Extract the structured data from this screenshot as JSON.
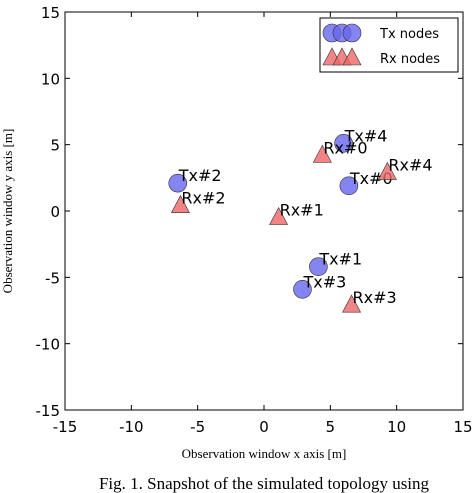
{
  "chart_data": {
    "type": "scatter",
    "xlabel": "Observation window x axis [m]",
    "ylabel": "Observation window y axis [m]",
    "caption": "Fig. 1. Snapshot of the simulated topology using",
    "xlim": [
      -15,
      15
    ],
    "ylim": [
      -15,
      15
    ],
    "xticks": [
      -15,
      -10,
      -5,
      0,
      5,
      10,
      15
    ],
    "yticks": [
      -15,
      -10,
      -5,
      0,
      5,
      10,
      15
    ],
    "legend": "upper right",
    "series": [
      {
        "name": "Tx nodes",
        "color": "#6666ee",
        "marker": "circle",
        "x": [
          6.0,
          6.4,
          -6.5,
          4.1,
          2.9
        ],
        "values": [
          5.1,
          1.9,
          2.1,
          -4.2,
          -5.9
        ],
        "labels": [
          "Tx#4",
          "Tx#0",
          "Tx#2",
          "Tx#1",
          "Tx#3"
        ]
      },
      {
        "name": "Rx nodes",
        "color": "#ee6666",
        "marker": "triangle",
        "x": [
          4.4,
          9.3,
          -6.3,
          1.1,
          6.6
        ],
        "values": [
          4.2,
          2.9,
          0.4,
          -0.5,
          -7.1
        ],
        "labels": [
          "Rx#0",
          "Rx#4",
          "Rx#2",
          "Rx#1",
          "Rx#3"
        ]
      }
    ]
  }
}
